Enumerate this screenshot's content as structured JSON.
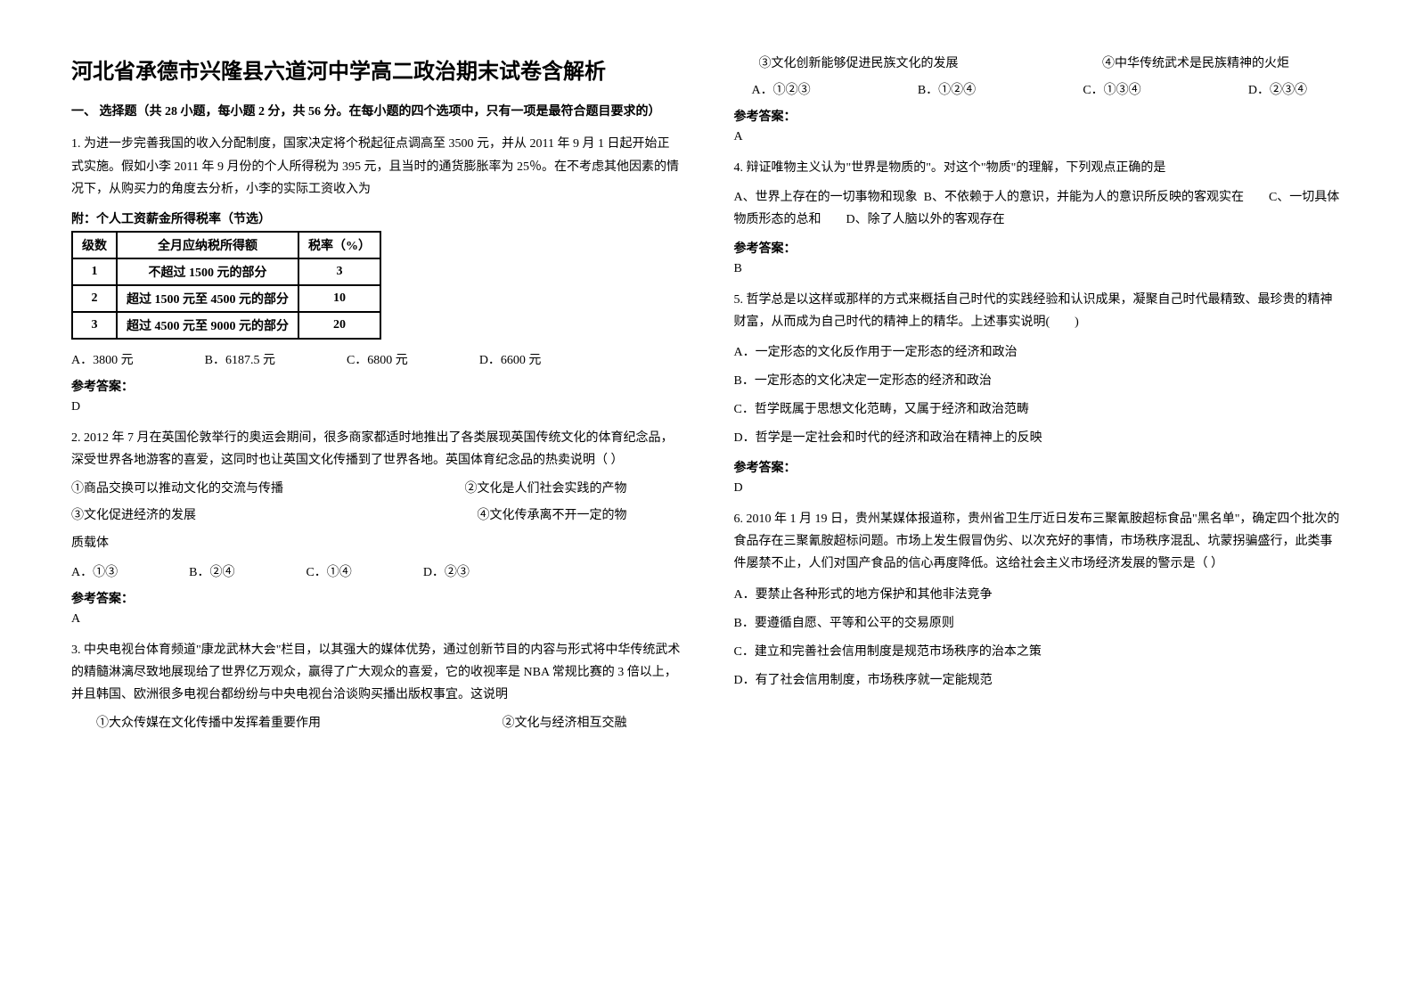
{
  "title": "河北省承德市兴隆县六道河中学高二政治期末试卷含解析",
  "section1_intro": "一、 选择题（共 28 小题，每小题 2 分，共 56 分。在每小题的四个选项中，只有一项是最符合题目要求的）",
  "q1": {
    "text": "1. 为进一步完善我国的收入分配制度，国家决定将个税起征点调高至 3500 元，并从 2011 年 9 月 1 日起开始正式实施。假如小李 2011 年 9 月份的个人所得税为 395 元，且当时的通货膨胀率为 25％。在不考虑其他因素的情况下，从购买力的角度去分析，小李的实际工资收入为",
    "table_caption": "附：个人工资薪金所得税率（节选）",
    "table": {
      "headers": [
        "级数",
        "全月应纳税所得额",
        "税率（%）"
      ],
      "rows": [
        [
          "1",
          "不超过 1500 元的部分",
          "3"
        ],
        [
          "2",
          "超过 1500 元至 4500 元的部分",
          "10"
        ],
        [
          "3",
          "超过 4500 元至 9000 元的部分",
          "20"
        ]
      ]
    },
    "opts": {
      "A": "A．3800 元",
      "B": "B．6187.5 元",
      "C": "C．6800 元",
      "D": "D．6600 元"
    },
    "answer": "D"
  },
  "q2": {
    "text": "2. 2012 年 7 月在英国伦敦举行的奥运会期间，很多商家都适时地推出了各类展现英国传统文化的体育纪念品，深受世界各地游客的喜爱，这同时也让英国文化传播到了世界各地。英国体育纪念品的热卖说明（ ）",
    "s1": "①商品交换可以推动文化的交流与传播",
    "s2": "②文化是人们社会实践的产物",
    "s3": "③文化促进经济的发展",
    "s4": "④文化传承离不开一定的物",
    "s4b": "质载体",
    "opts": {
      "A": "A．①③",
      "B": "B．②④",
      "C": "C．①④",
      "D": "D．②③"
    },
    "answer": "A"
  },
  "q3": {
    "text": "3. 中央电视台体育频道\"康龙武林大会\"栏目，以其强大的媒体优势，通过创新节目的内容与形式将中华传统武术的精髓淋漓尽致地展现给了世界亿万观众，赢得了广大观众的喜爱，它的收视率是 NBA 常规比赛的 3 倍以上，并且韩国、欧洲很多电视台都纷纷与中央电视台洽谈购买播出版权事宜。这说明",
    "s1": "①大众传媒在文化传播中发挥着重要作用",
    "s2": "②文化与经济相互交融",
    "s3": "③文化创新能够促进民族文化的发展",
    "s4": "④中华传统武术是民族精神的火炬",
    "opts": {
      "A": "A．①②③",
      "B": "B．①②④",
      "C": "C．①③④",
      "D": "D．②③④"
    },
    "answer": "A"
  },
  "q4": {
    "text": "4. 辩证唯物主义认为\"世界是物质的\"。对这个\"物质\"的理解，下列观点正确的是",
    "optA": "A、世界上存在的一切事物和现象",
    "optB": "B、不依赖于人的意识，并能为人的意识所反映的客观实在",
    "optC": "C、一切具体物质形态的总和",
    "optD": "D、除了人脑以外的客观存在",
    "answer": "B"
  },
  "q5": {
    "text": "5. 哲学总是以这样或那样的方式来概括自己时代的实践经验和认识成果，凝聚自己时代最精致、最珍贵的精神财富，从而成为自己时代的精神上的精华。上述事实说明(　　)",
    "optA": "A．一定形态的文化反作用于一定形态的经济和政治",
    "optB": "B．一定形态的文化决定一定形态的经济和政治",
    "optC": "C．哲学既属于思想文化范畴，又属于经济和政治范畴",
    "optD": "D．哲学是一定社会和时代的经济和政治在精神上的反映",
    "answer": "D"
  },
  "q6": {
    "text": "6. 2010 年 1 月 19 日，贵州某媒体报道称，贵州省卫生厅近日发布三聚氰胺超标食品\"黑名单\"，确定四个批次的食品存在三聚氰胺超标问题。市场上发生假冒伪劣、以次充好的事情，市场秩序混乱、坑蒙拐骗盛行，此类事件屡禁不止，人们对国产食品的信心再度降低。这给社会主义市场经济发展的警示是（  ）",
    "optA": "A．要禁止各种形式的地方保护和其他非法竞争",
    "optB": "B．要遵循自愿、平等和公平的交易原则",
    "optC": "C．建立和完善社会信用制度是规范市场秩序的治本之策",
    "optD": "D．有了社会信用制度，市场秩序就一定能规范"
  },
  "answer_label": "参考答案："
}
